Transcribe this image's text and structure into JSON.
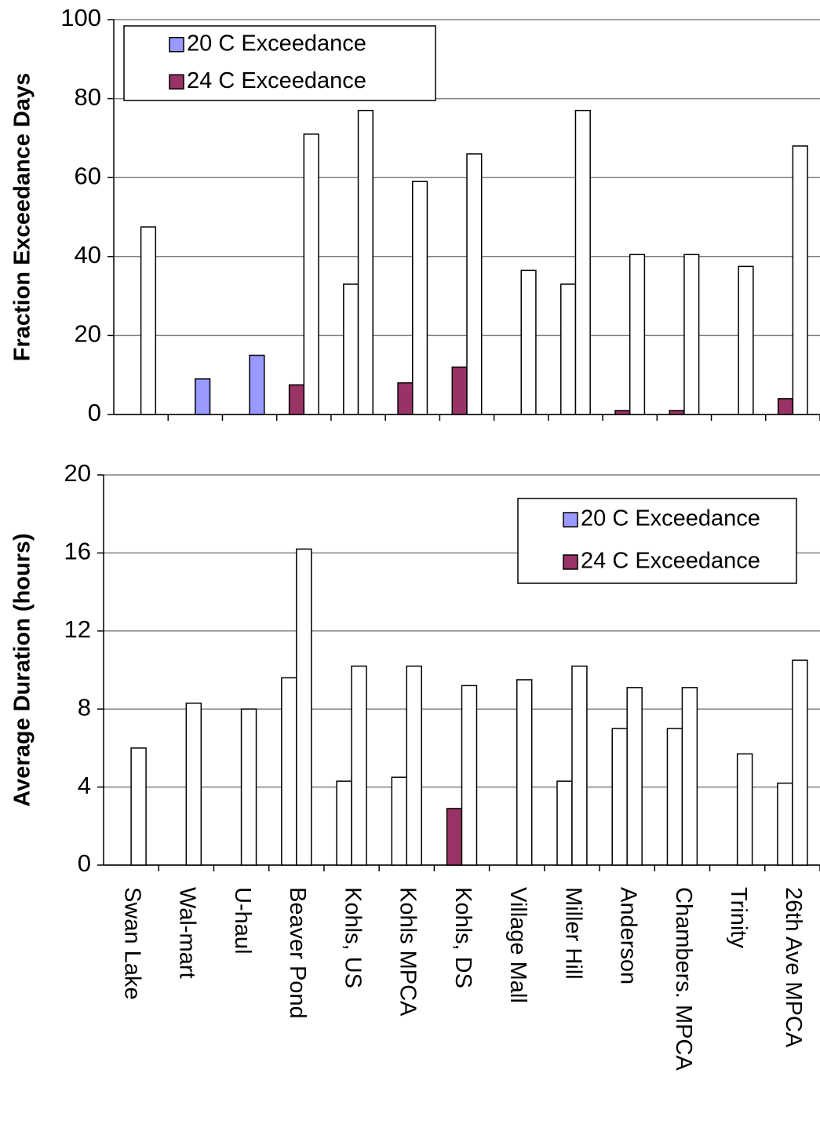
{
  "chart_data": [
    {
      "type": "bar",
      "ylabel": "Fraction Exceedance Days",
      "ylim": [
        0,
        100
      ],
      "yticks": [
        0,
        20,
        40,
        60,
        80,
        100
      ],
      "grid": true,
      "legend": {
        "position": "upper left",
        "entries": [
          {
            "name": "20 C Exceedance",
            "color": "#9999ff"
          },
          {
            "name": "24 C Exceedance",
            "color": "#993366"
          }
        ]
      },
      "series": [
        {
          "values": [
            null,
            null,
            null,
            7.5,
            33,
            8,
            12,
            null,
            33,
            1,
            1,
            null,
            4
          ],
          "colors": [
            "#ffffff",
            "#ffffff",
            "#ffffff",
            "#993366",
            "#ffffff",
            "#993366",
            "#993366",
            "#ffffff",
            "#ffffff",
            "#993366",
            "#993366",
            "#ffffff",
            "#993366"
          ]
        },
        {
          "values": [
            47.5,
            9,
            15,
            71,
            77,
            59,
            66,
            36.5,
            77,
            40.5,
            40.5,
            37.5,
            68
          ],
          "colors": [
            "#ffffff",
            "#9999ff",
            "#9999ff",
            "#ffffff",
            "#ffffff",
            "#ffffff",
            "#ffffff",
            "#ffffff",
            "#ffffff",
            "#ffffff",
            "#ffffff",
            "#ffffff",
            "#ffffff"
          ]
        }
      ]
    },
    {
      "type": "bar",
      "ylabel": "Average Duration (hours)",
      "ylim": [
        0,
        20
      ],
      "yticks": [
        0,
        4,
        8,
        12,
        16,
        20
      ],
      "grid": true,
      "categories": [
        "Swan Lake",
        "Wal-mart",
        "U-haul",
        "Beaver Pond",
        "Kohls, US",
        "Kohls MPCA",
        "Kohls, DS",
        "Village Mall",
        "Miller Hill",
        "Anderson",
        "Chambers. MPCA",
        "Trinity",
        "26th Ave MPCA"
      ],
      "legend": {
        "position": "upper right",
        "entries": [
          {
            "name": "20 C Exceedance",
            "color": "#9999ff"
          },
          {
            "name": "24 C Exceedance",
            "color": "#993366"
          }
        ]
      },
      "series": [
        {
          "values": [
            null,
            null,
            null,
            9.6,
            4.3,
            4.5,
            2.9,
            null,
            4.3,
            7,
            7,
            null,
            4.2
          ],
          "colors": [
            "#ffffff",
            "#ffffff",
            "#ffffff",
            "#ffffff",
            "#ffffff",
            "#ffffff",
            "#993366",
            "#ffffff",
            "#ffffff",
            "#ffffff",
            "#ffffff",
            "#ffffff",
            "#ffffff"
          ]
        },
        {
          "values": [
            6,
            8.3,
            8,
            16.2,
            10.2,
            10.2,
            9.2,
            9.5,
            10.2,
            9.1,
            9.1,
            5.7,
            10.5
          ],
          "colors": [
            "#ffffff",
            "#ffffff",
            "#ffffff",
            "#ffffff",
            "#ffffff",
            "#ffffff",
            "#ffffff",
            "#ffffff",
            "#ffffff",
            "#ffffff",
            "#ffffff",
            "#ffffff",
            "#ffffff"
          ]
        }
      ]
    }
  ]
}
